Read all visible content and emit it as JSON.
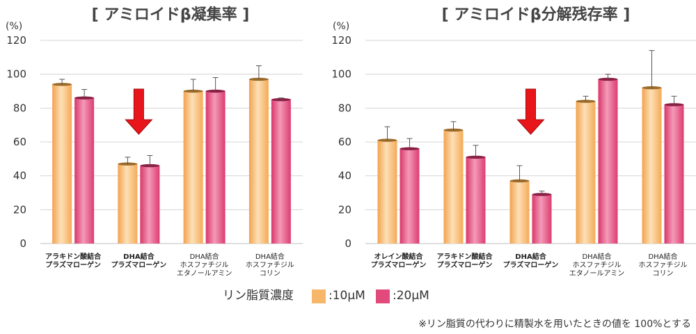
{
  "chart_data": [
    {
      "type": "bar",
      "title": "[ アミロイドβ凝集率 ]",
      "unit_label": "(%)",
      "ylim": [
        0,
        120
      ],
      "yticks": [
        0,
        20,
        40,
        60,
        80,
        100,
        120
      ],
      "grid": true,
      "categories": [
        {
          "lines": [
            "アラキドン酸結合",
            "プラズマローゲン"
          ],
          "bold": true
        },
        {
          "lines": [
            "DHA結合",
            "プラズマローゲン"
          ],
          "bold": true
        },
        {
          "lines": [
            "DHA結合",
            "ホスファチジル",
            "エタノールアミン"
          ],
          "bold": false
        },
        {
          "lines": [
            "DHA結合",
            "ホスファチジル",
            "コリン"
          ],
          "bold": false
        }
      ],
      "series": [
        {
          "name": ":10μM",
          "values": [
            94,
            47,
            90,
            97
          ],
          "errors": [
            3,
            4,
            7,
            8
          ]
        },
        {
          "name": ":20μM",
          "values": [
            86,
            46,
            90,
            85
          ],
          "errors": [
            5,
            6,
            8,
            1
          ]
        }
      ],
      "highlight_arrow_category": 1
    },
    {
      "type": "bar",
      "title": "[ アミロイドβ分解残存率 ]",
      "unit_label": "(%)",
      "ylim": [
        0,
        120
      ],
      "yticks": [
        0,
        20,
        40,
        60,
        80,
        100,
        120
      ],
      "grid": true,
      "categories": [
        {
          "lines": [
            "オレイン酸結合",
            "プラズマローゲン"
          ],
          "bold": true
        },
        {
          "lines": [
            "アラキドン酸結合",
            "プラズマローゲン"
          ],
          "bold": true
        },
        {
          "lines": [
            "DHA結合",
            "プラズマローゲン"
          ],
          "bold": true
        },
        {
          "lines": [
            "DHA結合",
            "ホスファチジル",
            "エタノールアミン"
          ],
          "bold": false
        },
        {
          "lines": [
            "DHA結合",
            "ホスファチジル",
            "コリン"
          ],
          "bold": false
        }
      ],
      "series": [
        {
          "name": ":10μM",
          "values": [
            61,
            67,
            37,
            84,
            92
          ],
          "errors": [
            8,
            5,
            9,
            3,
            22
          ]
        },
        {
          "name": ":20μM",
          "values": [
            56,
            51,
            29,
            97,
            82
          ],
          "errors": [
            6,
            7,
            2,
            3,
            5
          ]
        }
      ],
      "highlight_arrow_category": 2
    }
  ],
  "legend": {
    "title": "リン脂質濃度",
    "items": [
      {
        "label": ":10μM",
        "color": "#f7b76a"
      },
      {
        "label": ":20μM",
        "color": "#e24a7c"
      }
    ],
    "placement": "bottom-center"
  },
  "colors": {
    "series_10": "#f7b76a",
    "series_20": "#e24a7c",
    "arrow": "#e8151b"
  },
  "footnote": "※リン脂質の代わりに精製水を用いたときの値を 100%とする"
}
